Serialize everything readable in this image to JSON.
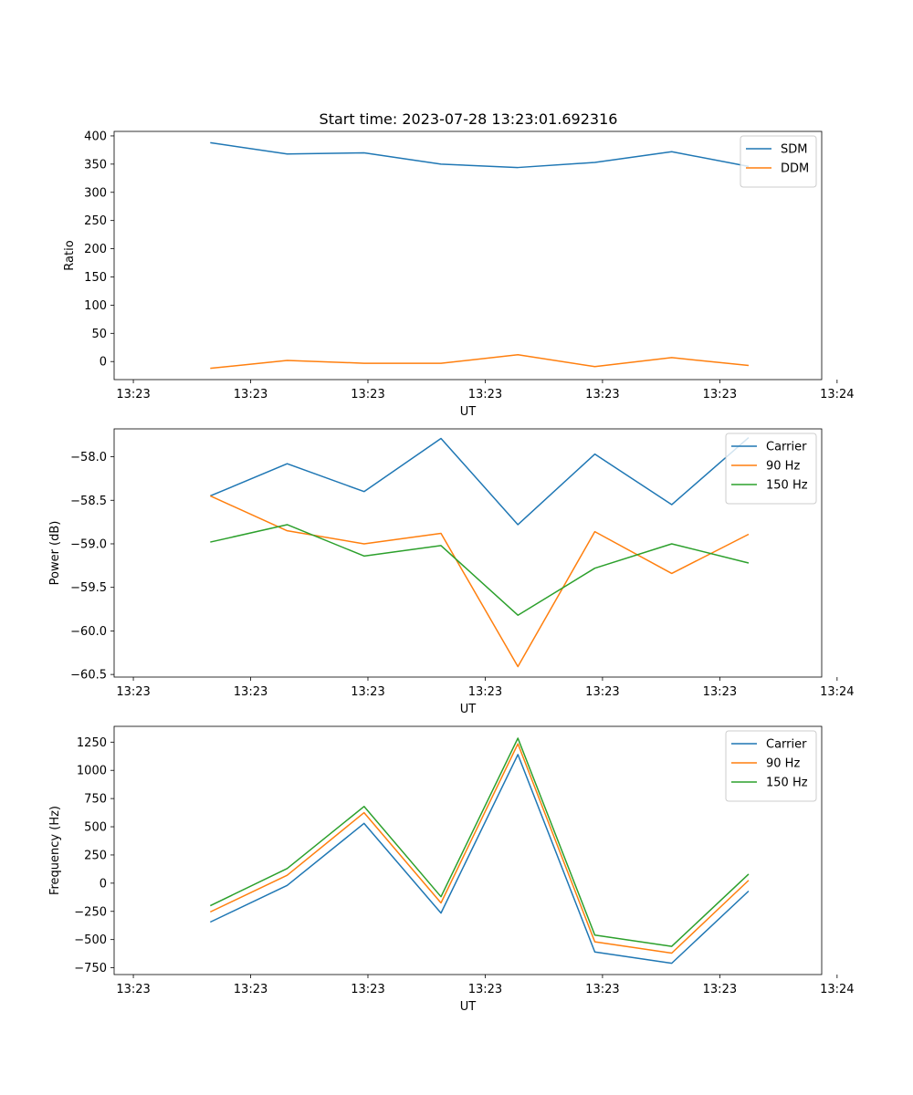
{
  "figure_title": "Start time: 2023-07-28 13:23:01.692316",
  "colors": {
    "blue": "#1f77b4",
    "orange": "#ff7f0e",
    "green": "#2ca02c"
  },
  "chart_data": [
    {
      "type": "line",
      "title": "Start time: 2023-07-28 13:23:01.692316",
      "xlabel": "UT",
      "ylabel": "Ratio",
      "x_tick_labels": [
        "13:23",
        "13:23",
        "13:23",
        "13:23",
        "13:23",
        "13:23",
        "13:24"
      ],
      "x_index": [
        1,
        2,
        3,
        4,
        5,
        6,
        7,
        8
      ],
      "xlim": [
        -0.25,
        8.95
      ],
      "ylim": [
        -32,
        408
      ],
      "yticks": [
        0,
        50,
        100,
        150,
        200,
        250,
        300,
        350,
        400
      ],
      "ytick_labels": [
        "0",
        "50",
        "100",
        "150",
        "200",
        "250",
        "300",
        "350",
        "400"
      ],
      "legend": "top-right",
      "series": [
        {
          "name": "SDM",
          "color": "#1f77b4",
          "values": [
            388,
            368,
            370,
            350,
            344,
            353,
            372,
            346
          ]
        },
        {
          "name": "DDM",
          "color": "#ff7f0e",
          "values": [
            -12,
            2,
            -3,
            -3,
            12,
            -9,
            7,
            -7
          ]
        }
      ]
    },
    {
      "type": "line",
      "title": "",
      "xlabel": "UT",
      "ylabel": "Power (dB)",
      "x_tick_labels": [
        "13:23",
        "13:23",
        "13:23",
        "13:23",
        "13:23",
        "13:23",
        "13:24"
      ],
      "x_index": [
        1,
        2,
        3,
        4,
        5,
        6,
        7,
        8
      ],
      "xlim": [
        -0.25,
        8.95
      ],
      "ylim": [
        -60.53,
        -57.68
      ],
      "yticks": [
        -60.5,
        -60.0,
        -59.5,
        -59.0,
        -58.5,
        -58.0
      ],
      "ytick_labels": [
        "−60.5",
        "−60.0",
        "−59.5",
        "−59.0",
        "−58.5",
        "−58.0"
      ],
      "legend": "top-right",
      "series": [
        {
          "name": "Carrier",
          "color": "#1f77b4",
          "values": [
            -58.45,
            -58.08,
            -58.4,
            -57.79,
            -58.78,
            -57.97,
            -58.55,
            -57.78
          ]
        },
        {
          "name": "90 Hz",
          "color": "#ff7f0e",
          "values": [
            -58.45,
            -58.85,
            -59.0,
            -58.88,
            -60.41,
            -58.86,
            -59.34,
            -58.89
          ]
        },
        {
          "name": "150 Hz",
          "color": "#2ca02c",
          "values": [
            -58.98,
            -58.78,
            -59.14,
            -59.02,
            -59.82,
            -59.28,
            -59.0,
            -59.22
          ]
        }
      ]
    },
    {
      "type": "line",
      "title": "",
      "xlabel": "UT",
      "ylabel": "Frequency (Hz)",
      "x_tick_labels": [
        "13:23",
        "13:23",
        "13:23",
        "13:23",
        "13:23",
        "13:23",
        "13:24"
      ],
      "x_index": [
        1,
        2,
        3,
        4,
        5,
        6,
        7,
        8
      ],
      "xlim": [
        -0.25,
        8.95
      ],
      "ylim": [
        -810,
        1390
      ],
      "yticks": [
        -750,
        -500,
        -250,
        0,
        250,
        500,
        750,
        1000,
        1250
      ],
      "ytick_labels": [
        "−750",
        "−500",
        "−250",
        "0",
        "250",
        "500",
        "750",
        "1000",
        "1250"
      ],
      "legend": "top-right",
      "series": [
        {
          "name": "Carrier",
          "color": "#1f77b4",
          "values": [
            -345,
            -20,
            530,
            -265,
            1140,
            -610,
            -710,
            -70
          ]
        },
        {
          "name": "90 Hz",
          "color": "#ff7f0e",
          "values": [
            -255,
            70,
            625,
            -175,
            1235,
            -520,
            -620,
            25
          ]
        },
        {
          "name": "150 Hz",
          "color": "#2ca02c",
          "values": [
            -200,
            130,
            680,
            -120,
            1285,
            -460,
            -560,
            80
          ]
        }
      ]
    }
  ]
}
